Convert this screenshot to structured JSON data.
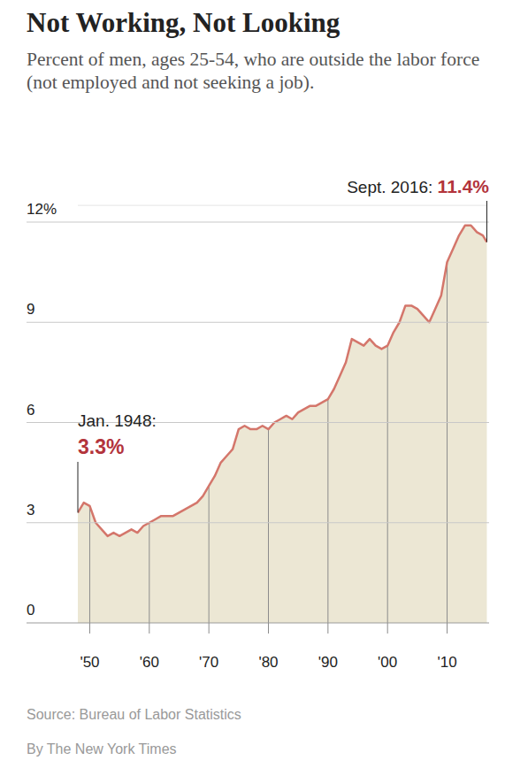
{
  "chart_data": {
    "type": "area",
    "title": "Not Working, Not Looking",
    "subtitle": "Percent of men, ages 25-54, who are outside the labor force (not employed and not seeking a job).",
    "source": "Source: Bureau of Labor Statistics",
    "credit": "By The New York Times",
    "x": [
      1948,
      1949,
      1950,
      1951,
      1952,
      1953,
      1954,
      1955,
      1956,
      1957,
      1958,
      1959,
      1960,
      1961,
      1962,
      1963,
      1964,
      1965,
      1966,
      1967,
      1968,
      1969,
      1970,
      1971,
      1972,
      1973,
      1974,
      1975,
      1976,
      1977,
      1978,
      1979,
      1980,
      1981,
      1982,
      1983,
      1984,
      1985,
      1986,
      1987,
      1988,
      1989,
      1990,
      1991,
      1992,
      1993,
      1994,
      1995,
      1996,
      1997,
      1998,
      1999,
      2000,
      2001,
      2002,
      2003,
      2004,
      2005,
      2006,
      2007,
      2008,
      2009,
      2010,
      2011,
      2012,
      2013,
      2014,
      2015,
      2016,
      2016.67
    ],
    "values": [
      3.3,
      3.6,
      3.5,
      3.0,
      2.8,
      2.6,
      2.7,
      2.6,
      2.7,
      2.8,
      2.7,
      2.9,
      3.0,
      3.1,
      3.2,
      3.2,
      3.2,
      3.3,
      3.4,
      3.5,
      3.6,
      3.8,
      4.1,
      4.4,
      4.8,
      5.0,
      5.2,
      5.8,
      5.9,
      5.8,
      5.8,
      5.9,
      5.8,
      6.0,
      6.1,
      6.2,
      6.1,
      6.3,
      6.4,
      6.5,
      6.5,
      6.6,
      6.7,
      7.0,
      7.4,
      7.8,
      8.5,
      8.4,
      8.3,
      8.5,
      8.3,
      8.2,
      8.3,
      8.7,
      9.0,
      9.5,
      9.5,
      9.4,
      9.2,
      9.0,
      9.4,
      9.8,
      10.8,
      11.2,
      11.6,
      11.9,
      11.9,
      11.7,
      11.6,
      11.4
    ],
    "color": "#d4766b",
    "xlim": [
      1948,
      2016.75
    ],
    "ylim": [
      0,
      12.5
    ],
    "xticks": [
      {
        "value": 1950,
        "label": "'50"
      },
      {
        "value": 1960,
        "label": "'60"
      },
      {
        "value": 1970,
        "label": "'70"
      },
      {
        "value": 1980,
        "label": "'80"
      },
      {
        "value": 1990,
        "label": "'90"
      },
      {
        "value": 2000,
        "label": "'00"
      },
      {
        "value": 2010,
        "label": "'10"
      }
    ],
    "yticks": [
      0,
      3,
      6,
      9,
      {
        "value": 12,
        "label": "12%"
      }
    ],
    "grid": true,
    "annotations": [
      {
        "x": 1948,
        "label": "Jan. 1948:",
        "value": 3.3,
        "value_label": "3.3%"
      },
      {
        "x": 2016.67,
        "label": "Sept. 2016:",
        "value": 11.4,
        "value_label": "11.4%"
      }
    ]
  }
}
